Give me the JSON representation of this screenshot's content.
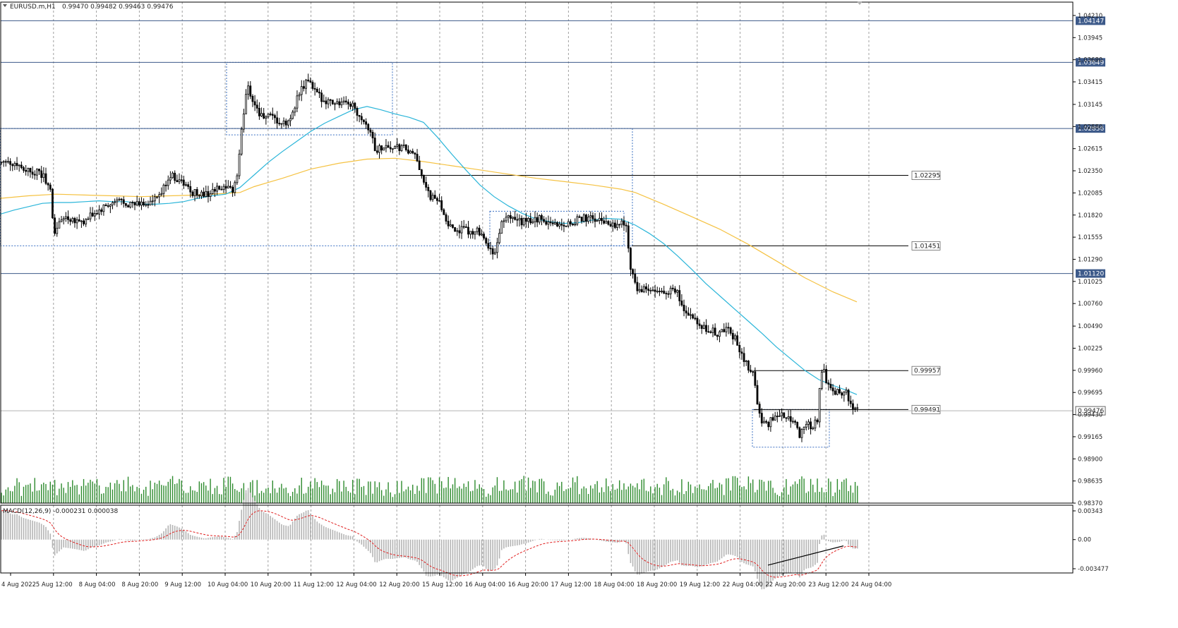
{
  "symbol_info": {
    "symbol": "EURUSD.m,H1",
    "ohlc": "0.99470 0.99482 0.99463 0.99476"
  },
  "macd_info": {
    "label": "MACD(12,26,9) -0.000231 0.000038"
  },
  "colors": {
    "candle": "#000000",
    "volume": "#2e8b2e",
    "ma_fast": "#2ab5d9",
    "ma_slow": "#f5c242",
    "hline": "#3d5a8a",
    "tag_bg": "#3d5a8a",
    "grid": "#a0a0a0",
    "macd_hist": "#b4b4b4",
    "macd_signal": "#e01e1e"
  },
  "chart_data": {
    "type": "candlestick",
    "price_axis": {
      "ylim": [
        0.9837,
        1.0437
      ],
      "ticks": [
        "1.04210",
        "1.03945",
        "1.03680",
        "1.03415",
        "1.03145",
        "1.02880",
        "1.02615",
        "1.02350",
        "1.02085",
        "1.01820",
        "1.01555",
        "1.01290",
        "1.01025",
        "1.00760",
        "1.00490",
        "1.00225",
        "0.99960",
        "0.99695",
        "0.99430",
        "0.99165",
        "0.98900",
        "0.98635",
        "0.98370"
      ]
    },
    "time_axis": {
      "labels": [
        "4 Aug 2022",
        "5 Aug 12:00",
        "8 Aug 04:00",
        "8 Aug 20:00",
        "9 Aug 12:00",
        "10 Aug 04:00",
        "10 Aug 20:00",
        "11 Aug 12:00",
        "12 Aug 04:00",
        "12 Aug 20:00",
        "15 Aug 12:00",
        "16 Aug 04:00",
        "16 Aug 20:00",
        "17 Aug 12:00",
        "18 Aug 04:00",
        "18 Aug 20:00",
        "19 Aug 12:00",
        "22 Aug 04:00",
        "22 Aug 20:00",
        "23 Aug 12:00",
        "24 Aug 04:00"
      ]
    },
    "price_path": [
      [
        0,
        1.0245
      ],
      [
        8,
        1.025
      ],
      [
        16,
        1.0242
      ],
      [
        24,
        1.0244
      ],
      [
        32,
        1.0238
      ],
      [
        40,
        1.0236
      ],
      [
        48,
        1.0234
      ],
      [
        56,
        1.0232
      ],
      [
        64,
        1.0226
      ],
      [
        72,
        1.0208
      ],
      [
        76,
        1.016
      ],
      [
        80,
        1.0166
      ],
      [
        90,
        1.018
      ],
      [
        100,
        1.0178
      ],
      [
        110,
        1.0176
      ],
      [
        120,
        1.0173
      ],
      [
        130,
        1.0182
      ],
      [
        140,
        1.0186
      ],
      [
        150,
        1.0192
      ],
      [
        160,
        1.0195
      ],
      [
        170,
        1.02
      ],
      [
        180,
        1.0196
      ],
      [
        190,
        1.0194
      ],
      [
        200,
        1.0196
      ],
      [
        210,
        1.0196
      ],
      [
        220,
        1.02
      ],
      [
        230,
        1.021
      ],
      [
        240,
        1.023
      ],
      [
        250,
        1.0226
      ],
      [
        260,
        1.022
      ],
      [
        270,
        1.021
      ],
      [
        280,
        1.0208
      ],
      [
        290,
        1.0206
      ],
      [
        300,
        1.021
      ],
      [
        310,
        1.0213
      ],
      [
        320,
        1.0212
      ],
      [
        330,
        1.0212
      ],
      [
        336,
        1.023
      ],
      [
        342,
        1.028
      ],
      [
        346,
        1.031
      ],
      [
        350,
        1.034
      ],
      [
        354,
        1.033
      ],
      [
        358,
        1.032
      ],
      [
        364,
        1.031
      ],
      [
        370,
        1.03
      ],
      [
        380,
        1.03
      ],
      [
        390,
        1.0295
      ],
      [
        400,
        1.029
      ],
      [
        410,
        1.0293
      ],
      [
        416,
        1.031
      ],
      [
        422,
        1.0325
      ],
      [
        430,
        1.0335
      ],
      [
        436,
        1.0345
      ],
      [
        442,
        1.0335
      ],
      [
        450,
        1.0325
      ],
      [
        460,
        1.032
      ],
      [
        470,
        1.0318
      ],
      [
        480,
        1.0316
      ],
      [
        490,
        1.0314
      ],
      [
        500,
        1.0315
      ],
      [
        506,
        1.0305
      ],
      [
        512,
        1.03
      ],
      [
        520,
        1.029
      ],
      [
        526,
        1.028
      ],
      [
        532,
        1.0258
      ],
      [
        538,
        1.0262
      ],
      [
        546,
        1.0265
      ],
      [
        556,
        1.0262
      ],
      [
        566,
        1.0262
      ],
      [
        574,
        1.0262
      ],
      [
        580,
        1.0256
      ],
      [
        590,
        1.025
      ],
      [
        596,
        1.0235
      ],
      [
        600,
        1.0225
      ],
      [
        604,
        1.021
      ],
      [
        610,
        1.0204
      ],
      [
        616,
        1.02
      ],
      [
        622,
        1.0198
      ],
      [
        626,
        1.019
      ],
      [
        632,
        1.0178
      ],
      [
        638,
        1.0166
      ],
      [
        646,
        1.0165
      ],
      [
        656,
        1.0164
      ],
      [
        666,
        1.0162
      ],
      [
        676,
        1.0164
      ],
      [
        684,
        1.016
      ],
      [
        692,
        1.014
      ],
      [
        700,
        1.0138
      ],
      [
        706,
        1.0148
      ],
      [
        710,
        1.0175
      ],
      [
        716,
        1.0178
      ],
      [
        726,
        1.0176
      ],
      [
        736,
        1.0174
      ],
      [
        746,
        1.0174
      ],
      [
        756,
        1.0176
      ],
      [
        766,
        1.0178
      ],
      [
        776,
        1.0174
      ],
      [
        786,
        1.0172
      ],
      [
        796,
        1.017
      ],
      [
        806,
        1.0172
      ],
      [
        816,
        1.0175
      ],
      [
        826,
        1.0178
      ],
      [
        836,
        1.0178
      ],
      [
        846,
        1.0176
      ],
      [
        856,
        1.0174
      ],
      [
        866,
        1.0172
      ],
      [
        876,
        1.017
      ],
      [
        882,
        1.0175
      ],
      [
        888,
        1.0165
      ],
      [
        892,
        1.0125
      ],
      [
        896,
        1.0115
      ],
      [
        900,
        1.01
      ],
      [
        904,
        1.009
      ],
      [
        910,
        1.0092
      ],
      [
        920,
        1.0092
      ],
      [
        930,
        1.0088
      ],
      [
        940,
        1.009
      ],
      [
        950,
        1.0092
      ],
      [
        960,
        1.0088
      ],
      [
        966,
        1.0072
      ],
      [
        972,
        1.0066
      ],
      [
        980,
        1.006
      ],
      [
        988,
        1.005
      ],
      [
        996,
        1.0046
      ],
      [
        1006,
        1.0044
      ],
      [
        1016,
        1.004
      ],
      [
        1024,
        1.0043
      ],
      [
        1030,
        1.0046
      ],
      [
        1038,
        1.0038
      ],
      [
        1044,
        1.003
      ],
      [
        1050,
        1.0015
      ],
      [
        1056,
        1.0005
      ],
      [
        1062,
        0.9998
      ],
      [
        1068,
        0.999
      ],
      [
        1072,
        0.9965
      ],
      [
        1076,
        0.9945
      ],
      [
        1080,
        0.993
      ],
      [
        1088,
        0.9932
      ],
      [
        1096,
        0.994
      ],
      [
        1106,
        0.9942
      ],
      [
        1116,
        0.994
      ],
      [
        1126,
        0.9936
      ],
      [
        1134,
        0.9916
      ],
      [
        1140,
        0.9932
      ],
      [
        1150,
        0.993
      ],
      [
        1158,
        0.9935
      ],
      [
        1162,
        0.9985
      ],
      [
        1166,
        0.9998
      ],
      [
        1172,
        0.9978
      ],
      [
        1180,
        0.9972
      ],
      [
        1190,
        0.997
      ],
      [
        1198,
        0.9972
      ],
      [
        1204,
        0.9955
      ],
      [
        1210,
        0.9948
      ],
      [
        1214,
        0.99476
      ]
    ],
    "ma_fast": [
      [
        0,
        1.0183
      ],
      [
        20,
        1.0188
      ],
      [
        40,
        1.0192
      ],
      [
        60,
        1.0196
      ],
      [
        80,
        1.0197
      ],
      [
        100,
        1.0197
      ],
      [
        120,
        1.0198
      ],
      [
        140,
        1.0199
      ],
      [
        160,
        1.0198
      ],
      [
        180,
        1.0198
      ],
      [
        200,
        1.0195
      ],
      [
        220,
        1.0195
      ],
      [
        240,
        1.0196
      ],
      [
        260,
        1.0198
      ],
      [
        280,
        1.0202
      ],
      [
        300,
        1.0205
      ],
      [
        320,
        1.0207
      ],
      [
        340,
        1.0215
      ],
      [
        360,
        1.023
      ],
      [
        380,
        1.0245
      ],
      [
        400,
        1.0258
      ],
      [
        420,
        1.027
      ],
      [
        440,
        1.0282
      ],
      [
        460,
        1.0292
      ],
      [
        480,
        1.03
      ],
      [
        500,
        1.0308
      ],
      [
        520,
        1.0312
      ],
      [
        540,
        1.0308
      ],
      [
        560,
        1.0303
      ],
      [
        580,
        1.0299
      ],
      [
        600,
        1.0293
      ],
      [
        620,
        1.0275
      ],
      [
        640,
        1.0255
      ],
      [
        660,
        1.0236
      ],
      [
        680,
        1.0218
      ],
      [
        700,
        1.0204
      ],
      [
        720,
        1.0193
      ],
      [
        740,
        1.0184
      ],
      [
        760,
        1.0177
      ],
      [
        780,
        1.0174
      ],
      [
        800,
        1.0172
      ],
      [
        820,
        1.0173
      ],
      [
        840,
        1.0176
      ],
      [
        860,
        1.0178
      ],
      [
        880,
        1.0177
      ],
      [
        900,
        1.017
      ],
      [
        920,
        1.016
      ],
      [
        940,
        1.0148
      ],
      [
        960,
        1.0133
      ],
      [
        980,
        1.0117
      ],
      [
        1000,
        1.01
      ],
      [
        1020,
        1.0085
      ],
      [
        1040,
        1.007
      ],
      [
        1060,
        1.0055
      ],
      [
        1080,
        1.004
      ],
      [
        1100,
        1.0024
      ],
      [
        1120,
        1.001
      ],
      [
        1140,
        0.9996
      ],
      [
        1160,
        0.9985
      ],
      [
        1180,
        0.9978
      ],
      [
        1200,
        0.9972
      ],
      [
        1214,
        0.9967
      ]
    ],
    "ma_slow": [
      [
        0,
        1.0202
      ],
      [
        40,
        1.0205
      ],
      [
        80,
        1.0207
      ],
      [
        120,
        1.0206
      ],
      [
        160,
        1.0205
      ],
      [
        200,
        1.0204
      ],
      [
        240,
        1.0205
      ],
      [
        280,
        1.0206
      ],
      [
        320,
        1.0208
      ],
      [
        340,
        1.0209
      ],
      [
        360,
        1.0216
      ],
      [
        400,
        1.0226
      ],
      [
        440,
        1.0237
      ],
      [
        480,
        1.0244
      ],
      [
        520,
        1.0249
      ],
      [
        560,
        1.025
      ],
      [
        600,
        1.0246
      ],
      [
        640,
        1.0241
      ],
      [
        680,
        1.0236
      ],
      [
        720,
        1.0231
      ],
      [
        760,
        1.0226
      ],
      [
        800,
        1.0222
      ],
      [
        840,
        1.0218
      ],
      [
        880,
        1.0213
      ],
      [
        900,
        1.0209
      ],
      [
        940,
        1.0195
      ],
      [
        980,
        1.018
      ],
      [
        1020,
        1.0165
      ],
      [
        1060,
        1.0147
      ],
      [
        1100,
        1.0127
      ],
      [
        1140,
        1.0107
      ],
      [
        1180,
        1.009
      ],
      [
        1214,
        1.0078
      ]
    ],
    "horizontal_levels": [
      {
        "value": 1.04147,
        "label": "1.04147",
        "style": "tag"
      },
      {
        "value": 1.03649,
        "label": "1.03649",
        "style": "tag"
      },
      {
        "value": 1.02856,
        "label": "1.02856",
        "style": "tag"
      },
      {
        "value": 1.0112,
        "label": "1.01120",
        "style": "tag"
      }
    ],
    "price_labels": [
      {
        "value": 1.02295,
        "label": "1.02295",
        "x_from": 566
      },
      {
        "value": 1.01451,
        "label": "1.01451",
        "x_from": 895
      },
      {
        "value": 0.99957,
        "label": "0.99957",
        "x_from": 1068
      },
      {
        "value": 0.99491,
        "label": "0.99491",
        "x_from": 1068
      }
    ],
    "current_price": {
      "value": 0.99476,
      "label": "0.99476"
    },
    "rectangles": [
      {
        "x0": 321,
        "x1": 556,
        "y_top": 1.03649,
        "y_bot": 1.0278
      },
      {
        "x0": 0,
        "x1": 896,
        "y_top": 1.02856,
        "y_bot": 1.01451
      },
      {
        "x0": 694,
        "x1": 884,
        "y_top": 1.01865,
        "y_bot": 1.01451
      },
      {
        "x0": 1066,
        "x1": 1175,
        "y_top": 0.99491,
        "y_bot": 0.9904
      }
    ],
    "macd_axis": {
      "ticks": [
        "0.00343",
        "0.00",
        "-0.003477"
      ]
    },
    "trend_line": {
      "x0": 1088,
      "v0": -0.00305,
      "x1": 1195,
      "v1": -0.00075
    }
  }
}
